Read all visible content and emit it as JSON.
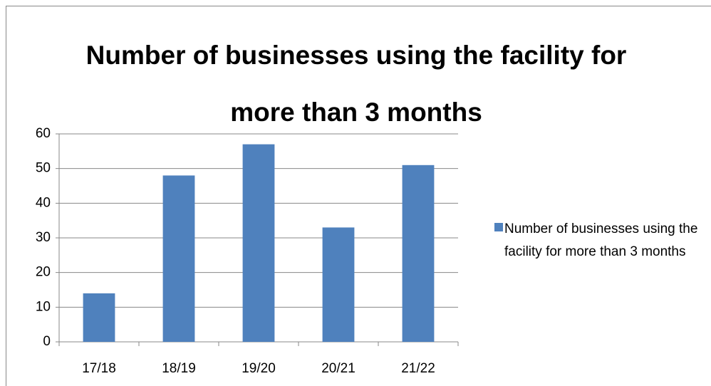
{
  "chart_data": {
    "type": "bar",
    "title": "Number of businesses using the facility for more than 3 months",
    "categories": [
      "17/18",
      "18/19",
      "19/20",
      "20/21",
      "21/22"
    ],
    "series": [
      {
        "name": "Number of businesses using the facility for more than 3 months",
        "color": "#4f81bd",
        "values": [
          14,
          48,
          57,
          33,
          51
        ]
      }
    ],
    "ylim": [
      0,
      60
    ],
    "yticks": [
      0,
      10,
      20,
      30,
      40,
      50,
      60
    ],
    "grid": true,
    "legend": "right"
  }
}
